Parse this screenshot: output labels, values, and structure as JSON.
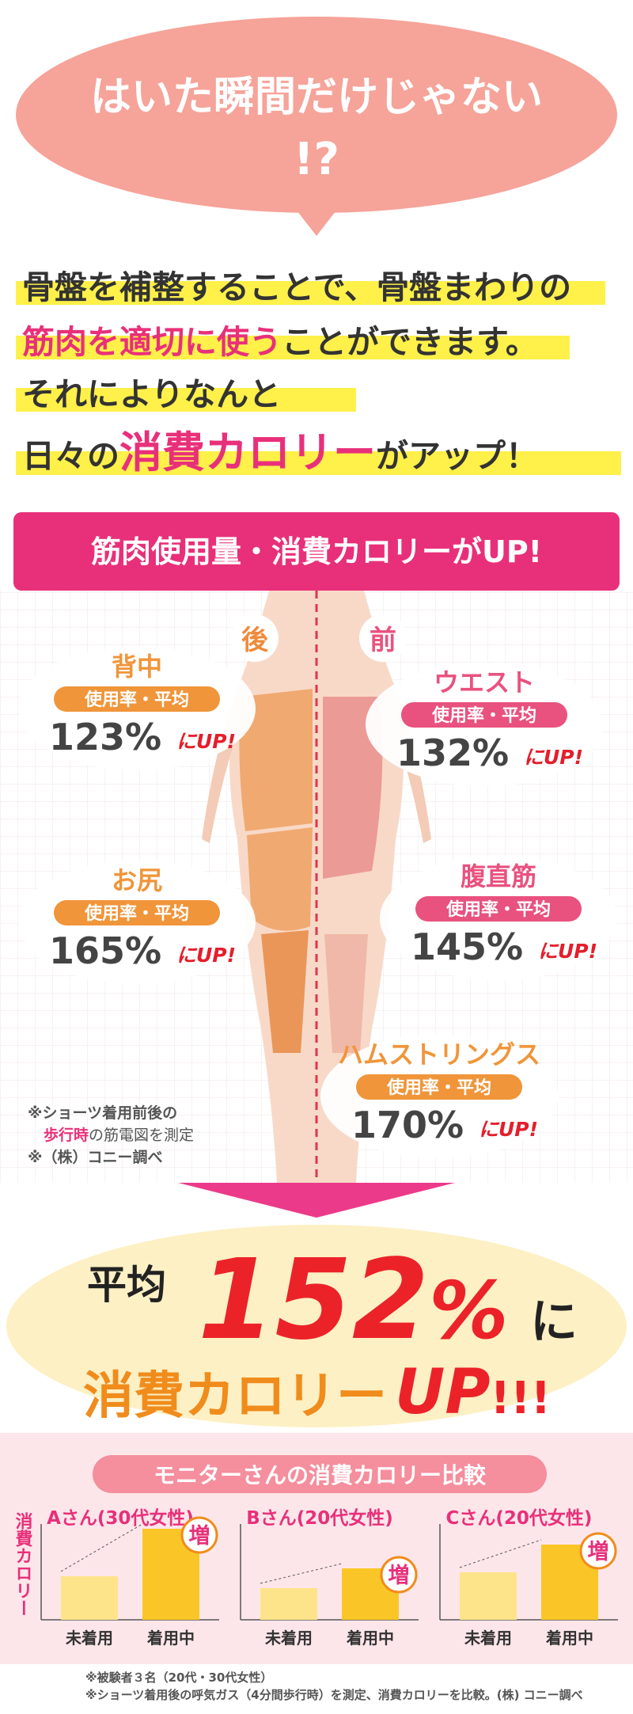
{
  "bubble": {
    "line1": "はいた瞬間だけじゃない",
    "line2": "!?"
  },
  "intro": {
    "line1": "骨盤を補整することで、骨盤まわりの",
    "line2_highlight": "筋肉を適切に使う",
    "line2_rest": "ことができます。",
    "line3": "それによりなんと",
    "line4_start": "日々の",
    "line4_highlight": "消費カロリー",
    "line4_end": "がアップ！"
  },
  "banner": "筋肉使用量・消費カロリーがUP!",
  "labels": {
    "back": "後",
    "front": "前"
  },
  "muscles": [
    {
      "name": "背中",
      "label": "使用率・平均",
      "value": "123%",
      "suffix": "にUP!"
    },
    {
      "name": "ウエスト",
      "label": "使用率・平均",
      "value": "132%",
      "suffix": "にUP!"
    },
    {
      "name": "お尻",
      "label": "使用率・平均",
      "value": "165%",
      "suffix": "にUP!"
    },
    {
      "name": "腹直筋",
      "label": "使用率・平均",
      "value": "145%",
      "suffix": "にUP!"
    },
    {
      "name": "ハムストリングス",
      "label": "使用率・平均",
      "value": "170%",
      "suffix": "にUP!"
    }
  ],
  "note": [
    "※ショーツ着用前後の",
    "歩行時",
    "の筋電図を測定",
    "※（株）コニー調べ"
  ],
  "result": {
    "prefix": "平均",
    "number": "152",
    "percent": "%",
    "particle": "に",
    "line2": "消費カロリー",
    "up": "UP",
    "exclaim": "!!!"
  },
  "comparison": {
    "title": "モニターさんの消費カロリー比較",
    "y_label": "消費カロリー",
    "bar_before": "未着用",
    "bar_after": "着用中",
    "badge": "増",
    "monitors": [
      "Aさん(30代女性)",
      "Bさん(20代女性)",
      "Cさん(20代女性)"
    ]
  },
  "footnotes": [
    "※被験者３名（20代・30代女性）",
    "※ショーツ着用後の呼気ガス（4分間歩行時）を測定、消費カロリーを比較。(株) コニー調べ"
  ]
}
